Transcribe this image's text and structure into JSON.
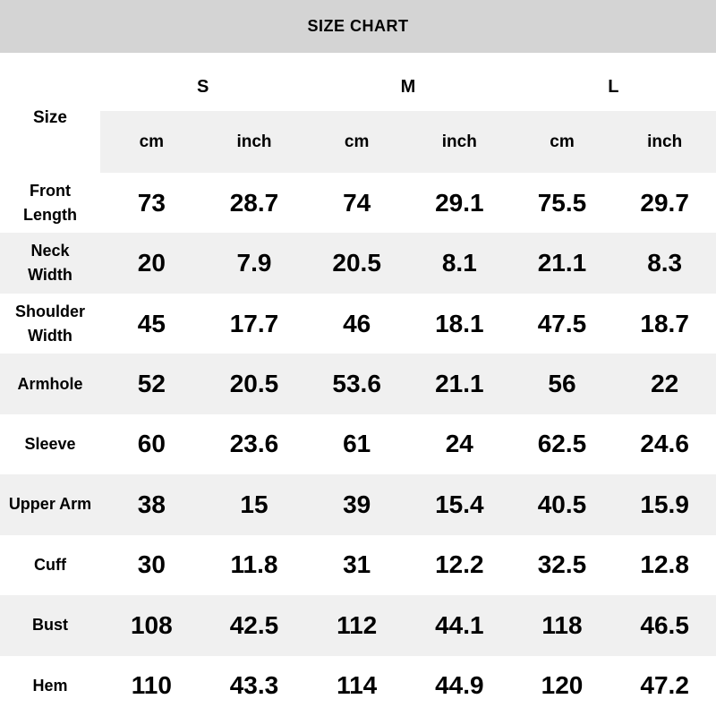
{
  "title": "SIZE CHART",
  "corner_label": "Size",
  "sizes": [
    "S",
    "M",
    "L"
  ],
  "unit_headers": [
    "cm",
    "inch",
    "cm",
    "inch",
    "cm",
    "inch"
  ],
  "rows": [
    {
      "label": "Front\nLength",
      "values": [
        "73",
        "28.7",
        "74",
        "29.1",
        "75.5",
        "29.7"
      ]
    },
    {
      "label": "Neck\nWidth",
      "values": [
        "20",
        "7.9",
        "20.5",
        "8.1",
        "21.1",
        "8.3"
      ]
    },
    {
      "label": "Shoulder\nWidth",
      "values": [
        "45",
        "17.7",
        "46",
        "18.1",
        "47.5",
        "18.7"
      ]
    },
    {
      "label": "Armhole",
      "values": [
        "52",
        "20.5",
        "53.6",
        "21.1",
        "56",
        "22"
      ]
    },
    {
      "label": "Sleeve",
      "values": [
        "60",
        "23.6",
        "61",
        "24",
        "62.5",
        "24.6"
      ]
    },
    {
      "label": "Upper Arm",
      "values": [
        "38",
        "15",
        "39",
        "15.4",
        "40.5",
        "15.9"
      ]
    },
    {
      "label": "Cuff",
      "values": [
        "30",
        "11.8",
        "31",
        "12.2",
        "32.5",
        "12.8"
      ]
    },
    {
      "label": "Bust",
      "values": [
        "108",
        "42.5",
        "112",
        "44.1",
        "118",
        "46.5"
      ]
    },
    {
      "label": "Hem",
      "values": [
        "110",
        "43.3",
        "114",
        "44.9",
        "120",
        "47.2"
      ]
    }
  ],
  "colors": {
    "title_bg": "#d4d4d4",
    "stripe_bg": "#f0f0f0",
    "row_bg": "#ffffff",
    "text": "#000000"
  },
  "chart_data": {
    "type": "table",
    "title": "SIZE CHART",
    "columns": [
      "Size",
      "S cm",
      "S inch",
      "M cm",
      "M inch",
      "L cm",
      "L inch"
    ],
    "rows": [
      [
        "Front Length",
        73,
        28.7,
        74,
        29.1,
        75.5,
        29.7
      ],
      [
        "Neck Width",
        20,
        7.9,
        20.5,
        8.1,
        21.1,
        8.3
      ],
      [
        "Shoulder Width",
        45,
        17.7,
        46,
        18.1,
        47.5,
        18.7
      ],
      [
        "Armhole",
        52,
        20.5,
        53.6,
        21.1,
        56,
        22
      ],
      [
        "Sleeve",
        60,
        23.6,
        61,
        24,
        62.5,
        24.6
      ],
      [
        "Upper Arm",
        38,
        15,
        39,
        15.4,
        40.5,
        15.9
      ],
      [
        "Cuff",
        30,
        11.8,
        31,
        12.2,
        32.5,
        12.8
      ],
      [
        "Bust",
        108,
        42.5,
        112,
        44.1,
        118,
        46.5
      ],
      [
        "Hem",
        110,
        43.3,
        114,
        44.9,
        120,
        47.2
      ]
    ]
  }
}
